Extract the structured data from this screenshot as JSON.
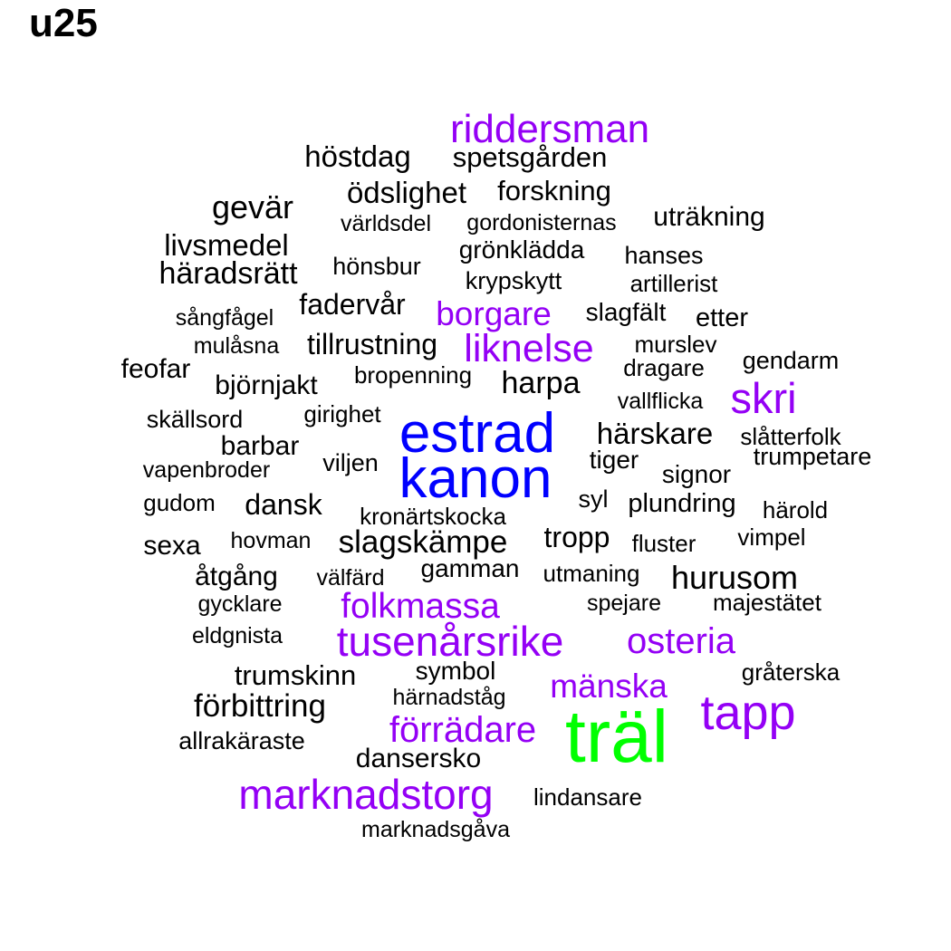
{
  "title": "u25",
  "colors": {
    "tier1": "#000000",
    "tier2": "#9400f5",
    "tier3": "#0000ff",
    "tier4": "#00ff00"
  },
  "words": [
    {
      "text": "riddersman",
      "tier": 2
    },
    {
      "text": "höstdag",
      "tier": 1
    },
    {
      "text": "spetsgården",
      "tier": 1
    },
    {
      "text": "ödslighet",
      "tier": 1
    },
    {
      "text": "forskning",
      "tier": 1
    },
    {
      "text": "gevär",
      "tier": 1
    },
    {
      "text": "världsdel",
      "tier": 1
    },
    {
      "text": "gordonisternas",
      "tier": 1
    },
    {
      "text": "uträkning",
      "tier": 1
    },
    {
      "text": "livsmedel",
      "tier": 1
    },
    {
      "text": "grönklädda",
      "tier": 1
    },
    {
      "text": "hanses",
      "tier": 1
    },
    {
      "text": "häradsrätt",
      "tier": 1
    },
    {
      "text": "hönsbur",
      "tier": 1
    },
    {
      "text": "krypskytt",
      "tier": 1
    },
    {
      "text": "artillerist",
      "tier": 1
    },
    {
      "text": "fadervår",
      "tier": 1
    },
    {
      "text": "borgare",
      "tier": 2
    },
    {
      "text": "slagfält",
      "tier": 1
    },
    {
      "text": "sångfågel",
      "tier": 1
    },
    {
      "text": "etter",
      "tier": 1
    },
    {
      "text": "mulåsna",
      "tier": 1
    },
    {
      "text": "tillrustning",
      "tier": 1
    },
    {
      "text": "liknelse",
      "tier": 2
    },
    {
      "text": "murslev",
      "tier": 1
    },
    {
      "text": "feofar",
      "tier": 1
    },
    {
      "text": "bropenning",
      "tier": 1
    },
    {
      "text": "dragare",
      "tier": 1
    },
    {
      "text": "gendarm",
      "tier": 1
    },
    {
      "text": "björnjakt",
      "tier": 1
    },
    {
      "text": "harpa",
      "tier": 1
    },
    {
      "text": "vallflicka",
      "tier": 1
    },
    {
      "text": "skri",
      "tier": 2
    },
    {
      "text": "skällsord",
      "tier": 1
    },
    {
      "text": "girighet",
      "tier": 1
    },
    {
      "text": "estrad",
      "tier": 3
    },
    {
      "text": "härskare",
      "tier": 1
    },
    {
      "text": "slåtterfolk",
      "tier": 1
    },
    {
      "text": "barbar",
      "tier": 1
    },
    {
      "text": "tiger",
      "tier": 1
    },
    {
      "text": "trumpetare",
      "tier": 1
    },
    {
      "text": "vapenbroder",
      "tier": 1
    },
    {
      "text": "viljen",
      "tier": 1
    },
    {
      "text": "kanon",
      "tier": 3
    },
    {
      "text": "signor",
      "tier": 1
    },
    {
      "text": "gudom",
      "tier": 1
    },
    {
      "text": "dansk",
      "tier": 1
    },
    {
      "text": "syl",
      "tier": 1
    },
    {
      "text": "plundring",
      "tier": 1
    },
    {
      "text": "härold",
      "tier": 1
    },
    {
      "text": "kronärtskocka",
      "tier": 1
    },
    {
      "text": "sexa",
      "tier": 1
    },
    {
      "text": "hovman",
      "tier": 1
    },
    {
      "text": "slagskämpe",
      "tier": 1
    },
    {
      "text": "tropp",
      "tier": 1
    },
    {
      "text": "fluster",
      "tier": 1
    },
    {
      "text": "vimpel",
      "tier": 1
    },
    {
      "text": "åtgång",
      "tier": 1
    },
    {
      "text": "välfärd",
      "tier": 1
    },
    {
      "text": "gamman",
      "tier": 1
    },
    {
      "text": "utmaning",
      "tier": 1
    },
    {
      "text": "hurusom",
      "tier": 1
    },
    {
      "text": "gycklare",
      "tier": 1
    },
    {
      "text": "folkmassa",
      "tier": 2
    },
    {
      "text": "spejare",
      "tier": 1
    },
    {
      "text": "majestätet",
      "tier": 1
    },
    {
      "text": "eldgnista",
      "tier": 1
    },
    {
      "text": "tusenårsrike",
      "tier": 2
    },
    {
      "text": "osteria",
      "tier": 2
    },
    {
      "text": "trumskinn",
      "tier": 1
    },
    {
      "text": "symbol",
      "tier": 1
    },
    {
      "text": "mänska",
      "tier": 2
    },
    {
      "text": "gråterska",
      "tier": 1
    },
    {
      "text": "härnadståg",
      "tier": 1
    },
    {
      "text": "förbittring",
      "tier": 1
    },
    {
      "text": "tapp",
      "tier": 2
    },
    {
      "text": "träl",
      "tier": 4
    },
    {
      "text": "förrädare",
      "tier": 2
    },
    {
      "text": "allrakäraste",
      "tier": 1
    },
    {
      "text": "dansersko",
      "tier": 1
    },
    {
      "text": "marknadstorg",
      "tier": 2
    },
    {
      "text": "lindansare",
      "tier": 1
    },
    {
      "text": "marknadsgåva",
      "tier": 1
    }
  ]
}
